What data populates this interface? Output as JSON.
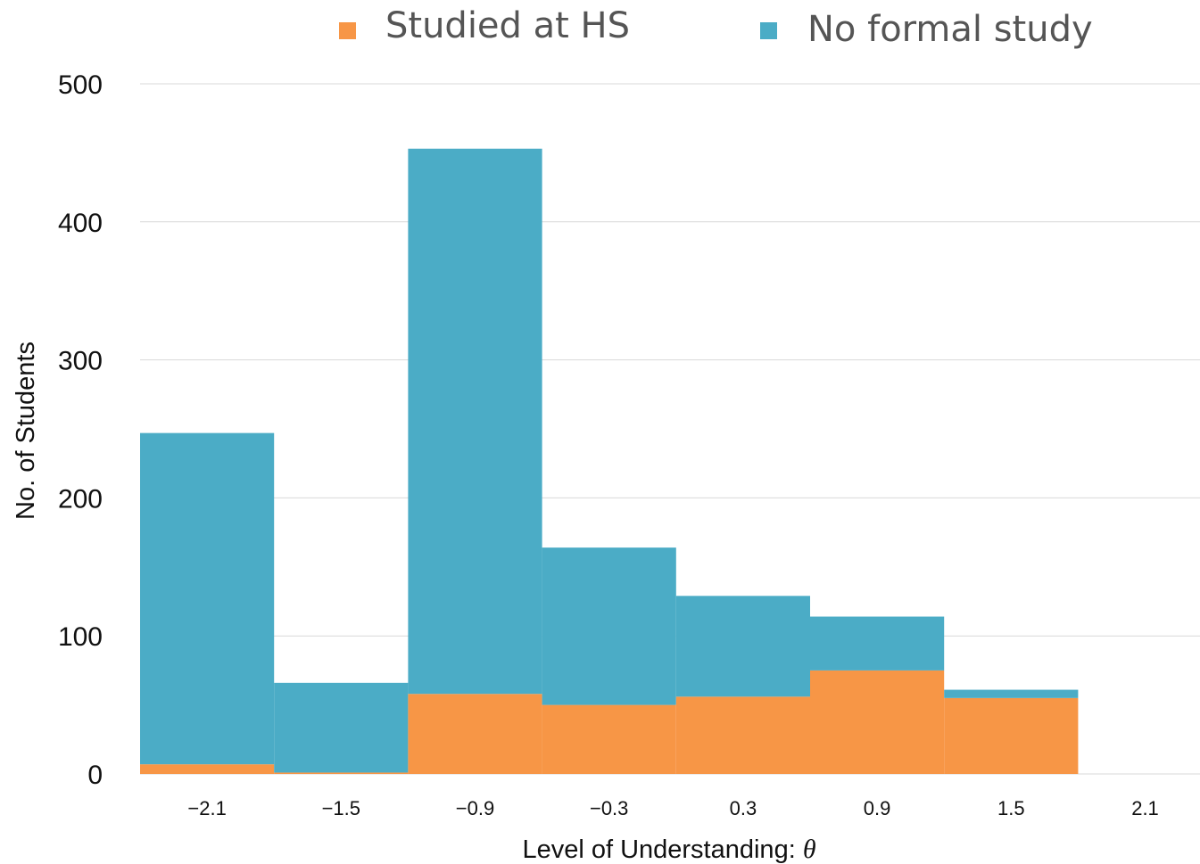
{
  "chart_data": {
    "type": "bar",
    "stacked": true,
    "categories": [
      "−2.1",
      "−1.5",
      "−0.9",
      "−0.3",
      "0.3",
      "0.9",
      "1.5",
      "2.1"
    ],
    "series": [
      {
        "name": "Studied at HS",
        "values": [
          7,
          1,
          58,
          50,
          56,
          75,
          55,
          0
        ],
        "color": "#f79646"
      },
      {
        "name": "No formal study",
        "values": [
          240,
          65,
          395,
          114,
          73,
          39,
          6,
          0
        ],
        "color": "#4bacc6"
      }
    ],
    "xlabel": "Level of Understanding: ",
    "xlabel_symbol": "θ",
    "ylabel": "No. of Students",
    "ylim": [
      0,
      500
    ],
    "yticks": [
      "0",
      "100",
      "200",
      "300",
      "400",
      "500"
    ],
    "grid": true,
    "legend": "top"
  }
}
